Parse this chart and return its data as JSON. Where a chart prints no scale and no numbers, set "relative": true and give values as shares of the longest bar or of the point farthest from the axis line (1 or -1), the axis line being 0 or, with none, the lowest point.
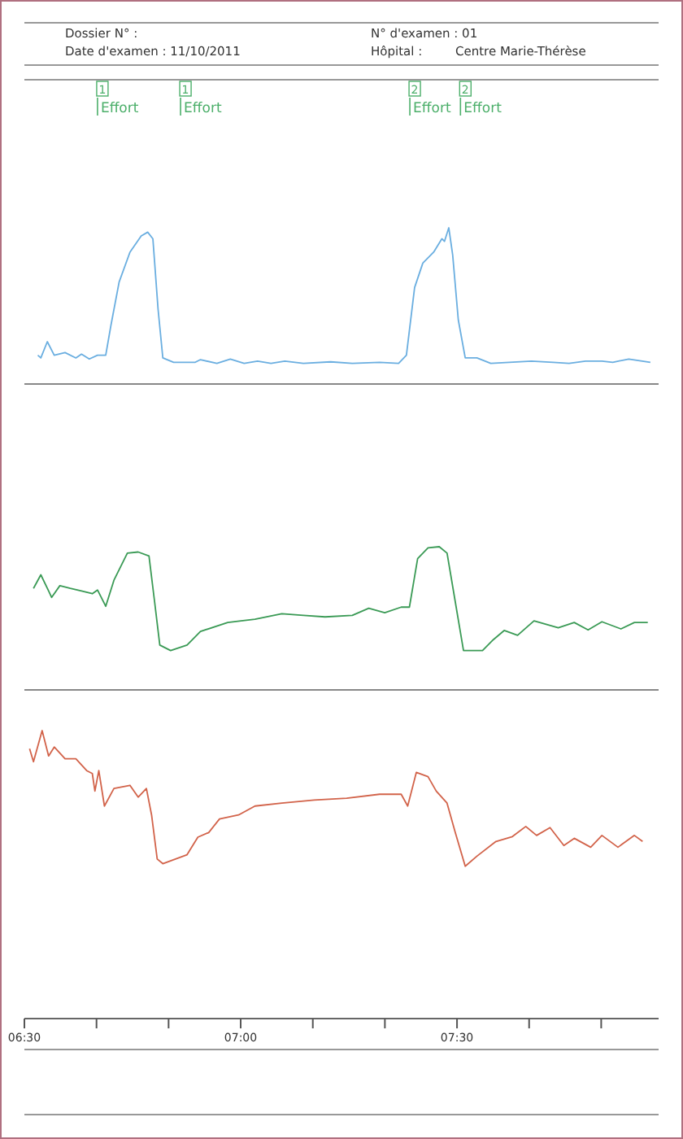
{
  "chart_data": [
    {
      "type": "other",
      "annotations": [
        "Dossier N° :",
        "Date d'examen : 11/10/2011",
        "N° d'examen : 01",
        "Hôpital :",
        "Centre Marie-Thérèse"
      ]
    },
    {
      "type": "line",
      "relative": true,
      "color": "#6aaee0",
      "xlim": [
        6.5,
        7.966
      ],
      "tick_labels": false,
      "x": [
        6.531,
        6.538,
        6.553,
        6.569,
        6.594,
        6.619,
        6.632,
        6.65,
        6.669,
        6.688,
        6.7,
        6.719,
        6.744,
        6.77,
        6.785,
        6.797,
        6.809,
        6.82,
        6.845,
        6.895,
        6.907,
        6.945,
        6.976,
        7.008,
        7.039,
        7.07,
        7.102,
        7.145,
        7.208,
        7.258,
        7.321,
        7.365,
        7.383,
        7.402,
        7.421,
        7.446,
        7.465,
        7.471,
        7.481,
        7.49,
        7.503,
        7.519,
        7.546,
        7.578,
        7.621,
        7.672,
        7.722,
        7.759,
        7.797,
        7.835,
        7.86,
        7.897,
        7.947
      ],
      "values": [
        0.184,
        0.167,
        0.271,
        0.184,
        0.201,
        0.167,
        0.191,
        0.16,
        0.184,
        0.184,
        0.375,
        0.653,
        0.844,
        0.948,
        0.972,
        0.93,
        0.479,
        0.167,
        0.139,
        0.139,
        0.156,
        0.132,
        0.16,
        0.132,
        0.146,
        0.132,
        0.146,
        0.132,
        0.142,
        0.132,
        0.139,
        0.132,
        0.184,
        0.618,
        0.774,
        0.844,
        0.93,
        0.913,
        1,
        0.826,
        0.41,
        0.167,
        0.167,
        0.132,
        0.139,
        0.146,
        0.139,
        0.132,
        0.146,
        0.146,
        0.139,
        0.16,
        0.139
      ],
      "ref_lines": [
        {
          "axis": "x",
          "value": 6.669,
          "label": "Effort",
          "color": "#4caf6a"
        },
        {
          "axis": "x",
          "value": 6.861,
          "label": "Effort",
          "color": "#4caf6a"
        },
        {
          "axis": "x",
          "value": 7.391,
          "label": "Effort",
          "color": "#4caf6a"
        },
        {
          "axis": "x",
          "value": 7.508,
          "label": "Effort",
          "color": "#4caf6a"
        }
      ],
      "annotations": [
        {
          "text": "1",
          "x": 6.669
        },
        {
          "text": "1",
          "x": 6.861
        },
        {
          "text": "2",
          "x": 7.391
        },
        {
          "text": "2",
          "x": 7.508
        }
      ]
    },
    {
      "type": "line",
      "relative": true,
      "color": "#3a9a55",
      "xlim": [
        6.5,
        7.966
      ],
      "tick_labels": false,
      "x": [
        6.521,
        6.538,
        6.556,
        6.563,
        6.582,
        6.606,
        6.632,
        6.657,
        6.669,
        6.688,
        6.707,
        6.738,
        6.763,
        6.788,
        6.801,
        6.813,
        6.838,
        6.876,
        6.907,
        6.97,
        7.033,
        7.095,
        7.145,
        7.195,
        7.258,
        7.296,
        7.333,
        7.371,
        7.39,
        7.409,
        7.433,
        7.459,
        7.477,
        7.496,
        7.515,
        7.559,
        7.584,
        7.609,
        7.64,
        7.678,
        7.734,
        7.771,
        7.803,
        7.835,
        7.879,
        7.91,
        7.941
      ],
      "values": [
        0.709,
        0.804,
        0.691,
        0.646,
        0.728,
        0.709,
        0.691,
        0.672,
        0.698,
        0.584,
        0.766,
        0.955,
        0.963,
        0.935,
        0.615,
        0.313,
        0.275,
        0.313,
        0.408,
        0.471,
        0.494,
        0.532,
        0.521,
        0.51,
        0.521,
        0.57,
        0.539,
        0.578,
        0.578,
        0.917,
        0.992,
        1,
        0.955,
        0.615,
        0.275,
        0.275,
        0.351,
        0.415,
        0.381,
        0.482,
        0.434,
        0.471,
        0.419,
        0.476,
        0.426,
        0.471,
        0.471
      ]
    },
    {
      "type": "line",
      "relative": true,
      "color": "#d2634a",
      "xlim": [
        6.5,
        7.966
      ],
      "tick_labels": "x",
      "xticks": [
        {
          "value": 6.5,
          "label": "06:30"
        },
        {
          "value": 6.6667,
          "label": null
        },
        {
          "value": 6.8333,
          "label": null
        },
        {
          "value": 7,
          "label": "07:00"
        },
        {
          "value": 7.1667,
          "label": null
        },
        {
          "value": 7.3333,
          "label": null
        },
        {
          "value": 7.5,
          "label": "07:30"
        },
        {
          "value": 7.6667,
          "label": null
        },
        {
          "value": 7.8333,
          "label": null
        }
      ],
      "x": [
        6.512,
        6.521,
        6.541,
        6.556,
        6.569,
        6.594,
        6.619,
        6.644,
        6.657,
        6.663,
        6.672,
        6.685,
        6.707,
        6.744,
        6.763,
        6.782,
        6.794,
        6.807,
        6.82,
        6.876,
        6.901,
        6.926,
        6.951,
        6.995,
        7.033,
        7.095,
        7.17,
        7.245,
        7.321,
        7.371,
        7.386,
        7.406,
        7.433,
        7.452,
        7.477,
        7.496,
        7.519,
        7.546,
        7.59,
        7.628,
        7.659,
        7.684,
        7.715,
        7.747,
        7.771,
        7.809,
        7.835,
        7.872,
        7.91,
        7.929
      ],
      "values": [
        0.937,
        0.892,
        1,
        0.912,
        0.943,
        0.902,
        0.902,
        0.861,
        0.851,
        0.79,
        0.861,
        0.738,
        0.799,
        0.81,
        0.769,
        0.799,
        0.707,
        0.554,
        0.538,
        0.569,
        0.63,
        0.646,
        0.693,
        0.707,
        0.738,
        0.748,
        0.759,
        0.765,
        0.779,
        0.779,
        0.738,
        0.855,
        0.84,
        0.79,
        0.748,
        0.646,
        0.529,
        0.564,
        0.615,
        0.632,
        0.667,
        0.636,
        0.663,
        0.601,
        0.626,
        0.595,
        0.636,
        0.595,
        0.636,
        0.615
      ]
    }
  ]
}
